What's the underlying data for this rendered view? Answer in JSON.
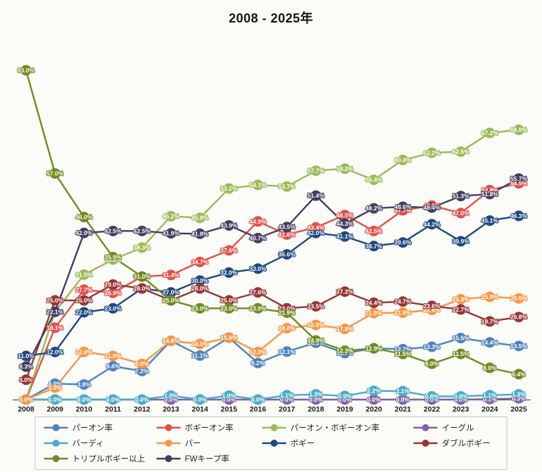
{
  "title": "2008 - 2025年",
  "chart_data": {
    "type": "line",
    "x": [
      "2008",
      "2009",
      "2010",
      "2011",
      "2012",
      "2013",
      "2014",
      "2015",
      "2016",
      "2017",
      "2018",
      "2019",
      "2020",
      "2021",
      "2022",
      "2023",
      "2024",
      "2025"
    ],
    "ylim": [
      0,
      90
    ],
    "grid": false,
    "legend_position": "bottom",
    "label_format": "0.0%",
    "axis_color": "#595959",
    "series": [
      {
        "name": "パーオン率",
        "color": "#4F81BD",
        "values": [
          0.0,
          4.0,
          3.8,
          8.4,
          7.2,
          14.8,
          11.1,
          15.6,
          9.2,
          12.1,
          14.3,
          11.7,
          12.9,
          12.7,
          13.3,
          15.5,
          14.4,
          13.5
        ]
      },
      {
        "name": "ボギーオン率",
        "color": "#E2504C",
        "values": [
          0.0,
          18.1,
          27.7,
          26.9,
          31.0,
          31.4,
          34.7,
          37.6,
          44.9,
          41.6,
          43.4,
          46.5,
          42.5,
          47.7,
          48.9,
          47.0,
          52.8,
          54.5
        ]
      },
      {
        "name": "パーオン・ボギーオン率",
        "color": "#9BBB59",
        "values": [
          0.0,
          22.1,
          31.5,
          35.3,
          38.3,
          46.2,
          45.8,
          53.2,
          54.1,
          53.7,
          57.7,
          58.2,
          55.4,
          60.4,
          62.2,
          62.5,
          67.2,
          68.0
        ]
      },
      {
        "name": "イーグル",
        "color": "#8064A2",
        "values": [
          0.0,
          0.0,
          0.0,
          0.0,
          0.0,
          0.0,
          0.0,
          0.0,
          0.0,
          0.0,
          0.0,
          0.0,
          0.0,
          0.0,
          0.0,
          0.0,
          0.1,
          0.3
        ]
      },
      {
        "name": "バーディ",
        "color": "#4BACC6",
        "values": [
          0.0,
          0.0,
          0.0,
          0.0,
          0.0,
          1.0,
          0.0,
          1.0,
          0.0,
          1.1,
          1.3,
          0.9,
          2.2,
          2.1,
          0.8,
          0.8,
          1.1,
          1.3
        ]
      },
      {
        "name": "パー",
        "color": "#F79646",
        "values": [
          0.0,
          3.0,
          12.0,
          11.0,
          9.0,
          14.8,
          14.0,
          15.6,
          12.0,
          18.0,
          18.8,
          17.8,
          21.8,
          21.9,
          22.6,
          25.3,
          25.9,
          25.5
        ]
      },
      {
        "name": "ボギー",
        "color": "#1F497D",
        "values": [
          11.0,
          12.0,
          22.0,
          23.0,
          28.0,
          27.0,
          30.0,
          32.0,
          33.0,
          36.6,
          42.0,
          41.1,
          38.7,
          39.6,
          44.2,
          39.9,
          45.1,
          46.3
        ]
      },
      {
        "name": "ダブルボギー",
        "color": "#953735",
        "values": [
          5.0,
          25.0,
          25.0,
          29.0,
          28.0,
          25.0,
          28.0,
          25.0,
          27.0,
          23.0,
          23.5,
          27.2,
          24.4,
          24.7,
          23.6,
          22.7,
          19.7,
          20.8
        ]
      },
      {
        "name": "トリプルボギー以上",
        "color": "#6E8B23",
        "values": [
          83.0,
          57.0,
          46.0,
          35.9,
          31.0,
          25.0,
          23.0,
          23.0,
          23.0,
          21.9,
          14.9,
          12.3,
          12.9,
          11.5,
          9.0,
          11.5,
          8.0,
          6.4
        ]
      },
      {
        "name": "FWキープ率",
        "color": "#453D5F",
        "values": [
          8.3,
          22.1,
          42.0,
          42.5,
          42.5,
          41.9,
          41.8,
          43.9,
          40.7,
          43.5,
          51.4,
          44.3,
          48.2,
          48.6,
          48.4,
          51.3,
          51.8,
          55.7
        ]
      }
    ]
  }
}
